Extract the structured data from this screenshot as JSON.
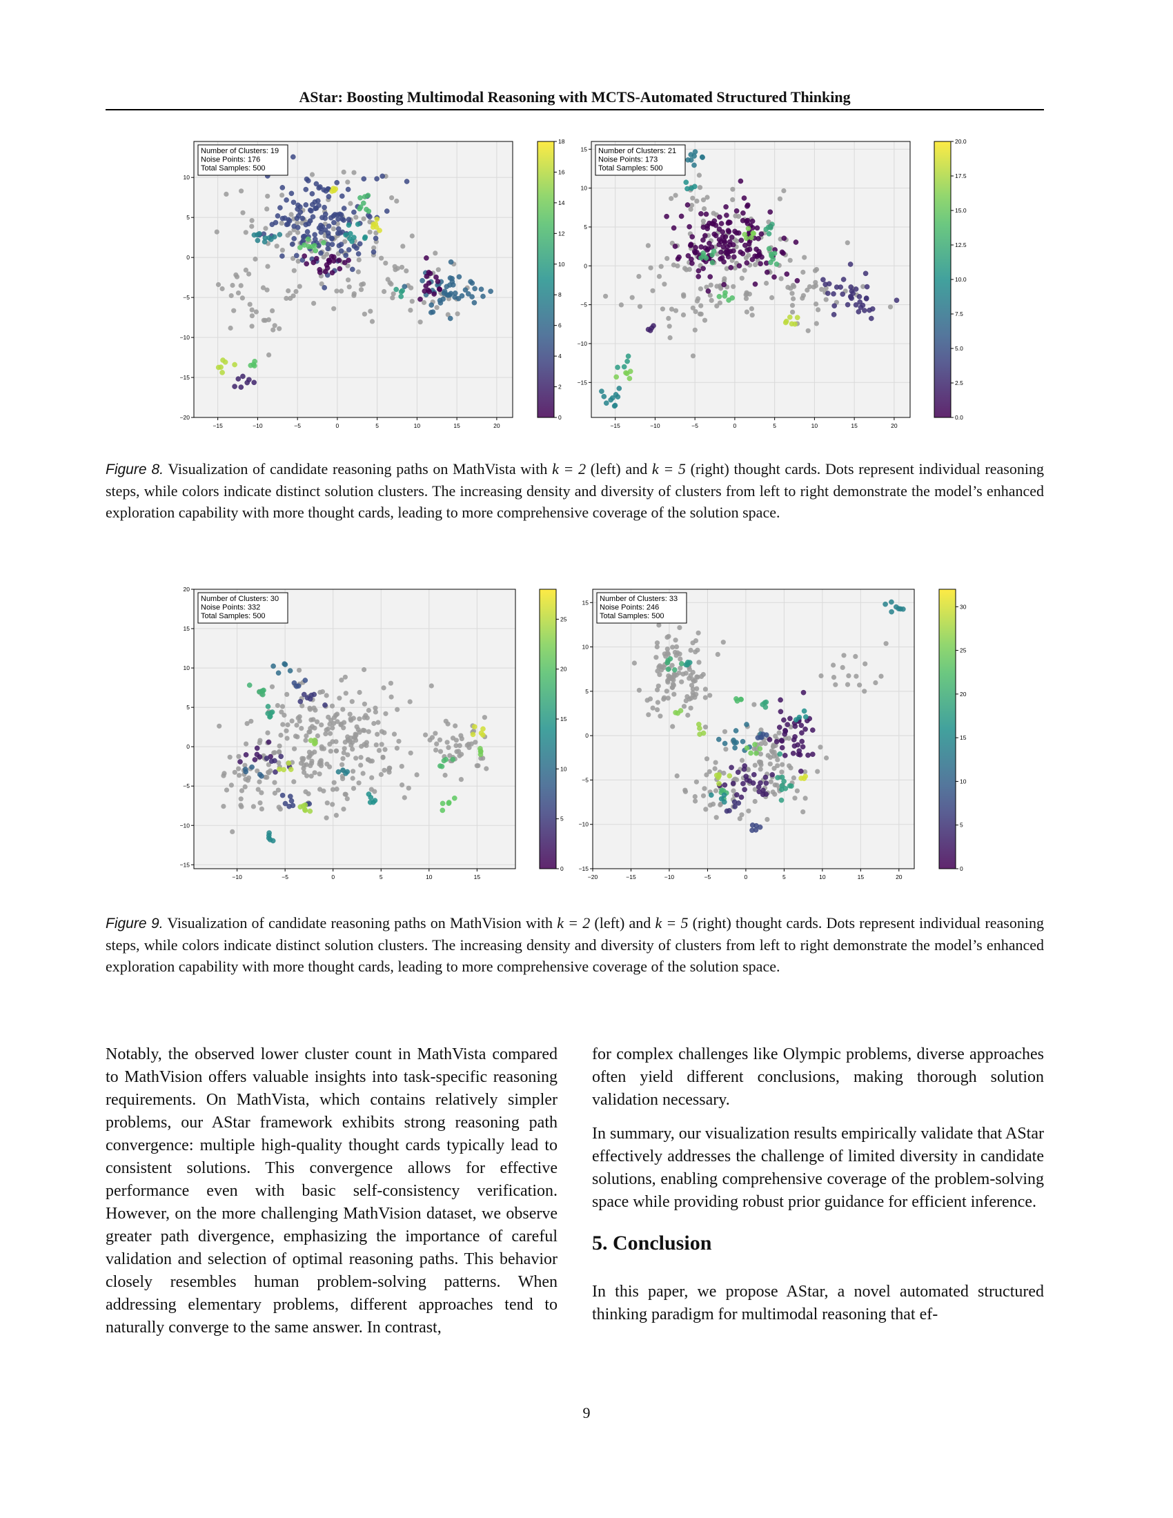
{
  "header": {
    "running_title": "AStar: Boosting Multimodal Reasoning with MCTS-Automated Structured Thinking"
  },
  "figure8": {
    "label": "Figure 8.",
    "caption_a": " Visualization of candidate reasoning paths on MathVista with ",
    "k_left": "k = 2",
    "caption_b": " (left) and ",
    "k_right": "k = 5",
    "caption_c": " (right) thought cards. Dots represent individual reasoning steps, while colors indicate distinct solution clusters. The increasing density and diversity of clusters from left to right demonstrate the model’s enhanced exploration capability with more thought cards, leading to more comprehensive coverage of the solution space."
  },
  "figure9": {
    "label": "Figure 9.",
    "caption_a": " Visualization of candidate reasoning paths on MathVision with ",
    "k_left": "k = 2",
    "caption_b": " (left) and ",
    "k_right": "k = 5",
    "caption_c": " (right) thought cards. Dots represent individual reasoning steps, while colors indicate distinct solution clusters. The increasing density and diversity of clusters from left to right demonstrate the model’s enhanced exploration capability with more thought cards, leading to more comprehensive coverage of the solution space."
  },
  "colors": {
    "noise": "#9a9a9a",
    "plot_bg": "#f2f2f2",
    "viridis": [
      "#440154",
      "#3b528b",
      "#21918c",
      "#5ec962",
      "#fde725"
    ]
  },
  "chart_data": [
    {
      "id": "fig8-left",
      "type": "scatter",
      "info": [
        "Number of Clusters: 19",
        "Noise Points: 176",
        "Total Samples: 500"
      ],
      "xlim": [
        -18,
        22
      ],
      "ylim": [
        -20,
        14.5
      ],
      "xticks": [
        -15,
        -10,
        -5,
        0,
        5,
        10,
        15,
        20
      ],
      "yticks": [
        -20,
        -15,
        -10,
        -5,
        0,
        5,
        10
      ],
      "cbar": {
        "min": 0,
        "max": 18,
        "ticks": [
          "0",
          "2",
          "4",
          "6",
          "8",
          "10",
          "12",
          "14",
          "16",
          "18"
        ]
      },
      "noise_regions": [
        [
          -2,
          3,
          8,
          6,
          90
        ],
        [
          5,
          -3,
          7,
          4,
          40
        ],
        [
          -10,
          -6,
          4,
          5,
          30
        ],
        [
          14,
          -4,
          5,
          3,
          16
        ]
      ],
      "clusters": [
        {
          "c": 4,
          "x": -2,
          "y": 4.5,
          "sx": 3.5,
          "sy": 3,
          "n": 140
        },
        {
          "c": 6,
          "x": 14,
          "y": -4.5,
          "sx": 2.5,
          "sy": 1.5,
          "n": 45
        },
        {
          "c": 0,
          "x": -1,
          "y": -0.5,
          "sx": 1.5,
          "sy": 0.8,
          "n": 20
        },
        {
          "c": 0,
          "x": 12,
          "y": -3,
          "sx": 1.2,
          "sy": 1.5,
          "n": 15
        },
        {
          "c": 9,
          "x": 2,
          "y": 3,
          "sx": 1,
          "sy": 1,
          "n": 9
        },
        {
          "c": 12,
          "x": 3.5,
          "y": 6.5,
          "sx": 0.5,
          "sy": 0.6,
          "n": 8
        },
        {
          "c": 17,
          "x": 5,
          "y": 4,
          "sx": 0.3,
          "sy": 0.6,
          "n": 6
        },
        {
          "c": 17,
          "x": -0.5,
          "y": 8.5,
          "sx": 0.3,
          "sy": 0.3,
          "n": 4
        },
        {
          "c": 8,
          "x": -9,
          "y": 2.5,
          "sx": 1,
          "sy": 0.5,
          "n": 10
        },
        {
          "c": 13,
          "x": -3,
          "y": 1.5,
          "sx": 1,
          "sy": 0.4,
          "n": 8
        },
        {
          "c": 16,
          "x": -14,
          "y": -13.5,
          "sx": 0.5,
          "sy": 0.3,
          "n": 6
        },
        {
          "c": 13,
          "x": -10.5,
          "y": -13.2,
          "sx": 0.3,
          "sy": 0.3,
          "n": 4
        },
        {
          "c": 2,
          "x": -12,
          "y": -15.5,
          "sx": 0.5,
          "sy": 0.4,
          "n": 7
        },
        {
          "c": 10,
          "x": 8,
          "y": -4,
          "sx": 0.5,
          "sy": 0.4,
          "n": 4
        }
      ]
    },
    {
      "id": "fig8-right",
      "type": "scatter",
      "info": [
        "Number of Clusters: 21",
        "Noise Points: 173",
        "Total Samples: 500"
      ],
      "xlim": [
        -18,
        22
      ],
      "ylim": [
        -19.5,
        16
      ],
      "xticks": [
        -15,
        -10,
        -5,
        0,
        5,
        10,
        15,
        20
      ],
      "yticks": [
        -15,
        -10,
        -5,
        0,
        5,
        10,
        15
      ],
      "cbar": {
        "min": 0,
        "max": 20,
        "ticks": [
          "0.0",
          "2.5",
          "5.0",
          "7.5",
          "10.0",
          "12.5",
          "15.0",
          "17.5",
          "20.0"
        ]
      },
      "noise_regions": [
        [
          0,
          0,
          9,
          6,
          90
        ],
        [
          -6,
          -3,
          6,
          5,
          40
        ],
        [
          12,
          -4,
          6,
          3,
          25
        ],
        [
          -4,
          9,
          3,
          3,
          18
        ]
      ],
      "clusters": [
        {
          "c": 0,
          "x": -1,
          "y": 3,
          "sx": 3.5,
          "sy": 2.8,
          "n": 150
        },
        {
          "c": 3,
          "x": 14.5,
          "y": -4,
          "sx": 2,
          "sy": 1.5,
          "n": 35
        },
        {
          "c": 8,
          "x": -5,
          "y": 13.5,
          "sx": 0.6,
          "sy": 0.8,
          "n": 8
        },
        {
          "c": 16,
          "x": 2,
          "y": 4,
          "sx": 0.5,
          "sy": 0.5,
          "n": 6
        },
        {
          "c": 13,
          "x": 5,
          "y": 1,
          "sx": 0.6,
          "sy": 0.6,
          "n": 7
        },
        {
          "c": 13,
          "x": -3,
          "y": 1,
          "sx": 0.5,
          "sy": 0.5,
          "n": 7
        },
        {
          "c": 18,
          "x": 7,
          "y": -7,
          "sx": 0.5,
          "sy": 0.4,
          "n": 6
        },
        {
          "c": 14,
          "x": -1,
          "y": -4,
          "sx": 0.5,
          "sy": 0.5,
          "n": 5
        },
        {
          "c": 2,
          "x": -10.5,
          "y": -8,
          "sx": 0.4,
          "sy": 0.4,
          "n": 4
        },
        {
          "c": 16,
          "x": -14,
          "y": -14,
          "sx": 0.5,
          "sy": 0.5,
          "n": 5
        },
        {
          "c": 9,
          "x": -15.5,
          "y": -17,
          "sx": 0.8,
          "sy": 0.6,
          "n": 10
        },
        {
          "c": 11,
          "x": -14,
          "y": -12.5,
          "sx": 0.4,
          "sy": 0.5,
          "n": 4
        },
        {
          "c": 12,
          "x": 4,
          "y": 5,
          "sx": 0.5,
          "sy": 0.5,
          "n": 5
        },
        {
          "c": 10,
          "x": -6,
          "y": 10,
          "sx": 0.5,
          "sy": 0.5,
          "n": 4
        }
      ]
    },
    {
      "id": "fig9-left",
      "type": "scatter",
      "info": [
        "Number of Clusters: 30",
        "Noise Points: 332",
        "Total Samples: 500"
      ],
      "xlim": [
        -14.5,
        19
      ],
      "ylim": [
        -15.5,
        20
      ],
      "xticks": [
        -10,
        -5,
        0,
        5,
        10,
        15
      ],
      "yticks": [
        -15,
        -10,
        -5,
        0,
        5,
        10,
        15,
        20
      ],
      "cbar": {
        "min": 0,
        "max": 28,
        "ticks": [
          "0",
          "5",
          "10",
          "15",
          "20",
          "25"
        ]
      },
      "noise_regions": [
        [
          0,
          0,
          7,
          6.5,
          250
        ],
        [
          13,
          0,
          3,
          3.5,
          45
        ],
        [
          -9,
          -5,
          3,
          5,
          37
        ]
      ],
      "clusters": [
        {
          "c": 2,
          "x": -8,
          "y": -1,
          "sx": 0.8,
          "sy": 0.6,
          "n": 8
        },
        {
          "c": 4,
          "x": -6,
          "y": -2,
          "sx": 0.6,
          "sy": 0.6,
          "n": 6
        },
        {
          "c": 18,
          "x": -7.5,
          "y": 7,
          "sx": 0.5,
          "sy": 0.5,
          "n": 6
        },
        {
          "c": 16,
          "x": -7,
          "y": 4,
          "sx": 0.6,
          "sy": 0.5,
          "n": 6
        },
        {
          "c": 10,
          "x": -5.5,
          "y": 10,
          "sx": 0.5,
          "sy": 0.5,
          "n": 5
        },
        {
          "c": 5,
          "x": -2,
          "y": 6,
          "sx": 0.8,
          "sy": 0.8,
          "n": 7
        },
        {
          "c": 6,
          "x": -4,
          "y": -7,
          "sx": 0.8,
          "sy": 0.5,
          "n": 8
        },
        {
          "c": 24,
          "x": -3,
          "y": -7.5,
          "sx": 0.5,
          "sy": 0.5,
          "n": 6
        },
        {
          "c": 12,
          "x": 1,
          "y": -3,
          "sx": 0.5,
          "sy": 0.4,
          "n": 4
        },
        {
          "c": 25,
          "x": -5,
          "y": -3,
          "sx": 0.4,
          "sy": 0.4,
          "n": 4
        },
        {
          "c": 14,
          "x": 4,
          "y": -7,
          "sx": 0.5,
          "sy": 0.5,
          "n": 5
        },
        {
          "c": 21,
          "x": 12,
          "y": -7,
          "sx": 0.5,
          "sy": 0.5,
          "n": 5
        },
        {
          "c": 19,
          "x": 11.5,
          "y": -2.5,
          "sx": 0.6,
          "sy": 0.5,
          "n": 5
        },
        {
          "c": 26,
          "x": 15,
          "y": 2,
          "sx": 0.5,
          "sy": 0.6,
          "n": 5
        },
        {
          "c": 22,
          "x": 15.5,
          "y": -0.5,
          "sx": 0.4,
          "sy": 0.4,
          "n": 4
        },
        {
          "c": 13,
          "x": -6.5,
          "y": -12,
          "sx": 0.4,
          "sy": 0.6,
          "n": 5
        },
        {
          "c": 9,
          "x": -8,
          "y": -3,
          "sx": 0.5,
          "sy": 0.5,
          "n": 5
        },
        {
          "c": 23,
          "x": -2,
          "y": 0.5,
          "sx": 0.5,
          "sy": 0.4,
          "n": 4
        },
        {
          "c": 7,
          "x": -3.5,
          "y": 8,
          "sx": 0.4,
          "sy": 0.4,
          "n": 4
        }
      ]
    },
    {
      "id": "fig9-right",
      "type": "scatter",
      "info": [
        "Number of Clusters: 33",
        "Noise Points: 246",
        "Total Samples: 500"
      ],
      "xlim": [
        -20,
        22
      ],
      "ylim": [
        -15,
        16.5
      ],
      "xticks": [
        -20,
        -15,
        -10,
        -5,
        0,
        5,
        10,
        15,
        20
      ],
      "yticks": [
        -15,
        -10,
        -5,
        0,
        5,
        10,
        15
      ],
      "cbar": {
        "min": 0,
        "max": 32,
        "ticks": [
          "0",
          "5",
          "10",
          "15",
          "20",
          "25",
          "30"
        ]
      },
      "noise_regions": [
        [
          -9,
          7,
          4,
          4,
          110
        ],
        [
          2,
          -4,
          5,
          4,
          100
        ],
        [
          15,
          7,
          4,
          3,
          16
        ],
        [
          -5,
          -6,
          3,
          3,
          20
        ]
      ],
      "clusters": [
        {
          "c": 2,
          "x": 6,
          "y": 0,
          "sx": 1.5,
          "sy": 1.8,
          "n": 40
        },
        {
          "c": 3,
          "x": 1,
          "y": -5,
          "sx": 1.5,
          "sy": 1.2,
          "n": 25
        },
        {
          "c": 12,
          "x": -1,
          "y": 0,
          "sx": 1.2,
          "sy": 1,
          "n": 12
        },
        {
          "c": 18,
          "x": 5,
          "y": -5,
          "sx": 0.8,
          "sy": 1.2,
          "n": 10
        },
        {
          "c": 14,
          "x": 19.5,
          "y": 14.5,
          "sx": 0.8,
          "sy": 0.4,
          "n": 7
        },
        {
          "c": 20,
          "x": -9.5,
          "y": 8.5,
          "sx": 0.6,
          "sy": 0.6,
          "n": 6
        },
        {
          "c": 28,
          "x": -4,
          "y": -4.5,
          "sx": 0.6,
          "sy": 0.6,
          "n": 6
        },
        {
          "c": 21,
          "x": -3,
          "y": -6,
          "sx": 0.5,
          "sy": 0.5,
          "n": 5
        },
        {
          "c": 25,
          "x": 1,
          "y": -1.5,
          "sx": 0.5,
          "sy": 0.5,
          "n": 5
        },
        {
          "c": 8,
          "x": 2,
          "y": 0,
          "sx": 0.5,
          "sy": 0.5,
          "n": 5
        },
        {
          "c": 5,
          "x": -2,
          "y": -8,
          "sx": 0.8,
          "sy": 0.4,
          "n": 5
        },
        {
          "c": 7,
          "x": 1,
          "y": -10.5,
          "sx": 0.8,
          "sy": 0.4,
          "n": 5
        },
        {
          "c": 19,
          "x": 2.5,
          "y": 3.5,
          "sx": 0.4,
          "sy": 0.4,
          "n": 4
        },
        {
          "c": 16,
          "x": 7,
          "y": 2.5,
          "sx": 0.5,
          "sy": 0.4,
          "n": 4
        },
        {
          "c": 22,
          "x": -1,
          "y": 4,
          "sx": 0.5,
          "sy": 0.4,
          "n": 4
        },
        {
          "c": 27,
          "x": -6,
          "y": 1,
          "sx": 0.4,
          "sy": 0.5,
          "n": 4
        },
        {
          "c": 17,
          "x": -7.5,
          "y": 8,
          "sx": 0.5,
          "sy": 0.4,
          "n": 4
        },
        {
          "c": 15,
          "x": -4,
          "y": -7,
          "sx": 0.6,
          "sy": 0.4,
          "n": 4
        },
        {
          "c": 26,
          "x": -8.5,
          "y": 3,
          "sx": 0.4,
          "sy": 0.4,
          "n": 3
        },
        {
          "c": 30,
          "x": 7.5,
          "y": -4.5,
          "sx": 0.4,
          "sy": 0.3,
          "n": 3
        }
      ]
    }
  ],
  "body": {
    "left_p1": "Notably, the observed lower cluster count in MathVista compared to MathVision offers valuable insights into task-specific reasoning requirements. On MathVista, which contains relatively simpler problems, our AStar framework exhibits strong reasoning path convergence: multiple high-quality thought cards typically lead to consistent solutions. This convergence allows for effective performance even with basic self-consistency verification. However, on the more challenging MathVision dataset, we observe greater path divergence, emphasizing the importance of careful validation and selection of optimal reasoning paths. This behavior closely resembles human problem-solving patterns. When addressing elementary problems, different approaches tend to naturally converge to the same answer. In contrast,",
    "right_p1": "for complex challenges like Olympic problems, diverse approaches often yield different conclusions, making thorough solution validation necessary.",
    "right_p2": "In summary, our visualization results empirically validate that AStar effectively addresses the challenge of limited diversity in candidate solutions, enabling comprehensive coverage of the problem-solving space while providing robust prior guidance for efficient inference.",
    "section_title": "5. Conclusion",
    "right_p3": "In this paper, we propose AStar, a novel automated structured thinking paradigm for multimodal reasoning that ef-"
  },
  "page_number": "9"
}
